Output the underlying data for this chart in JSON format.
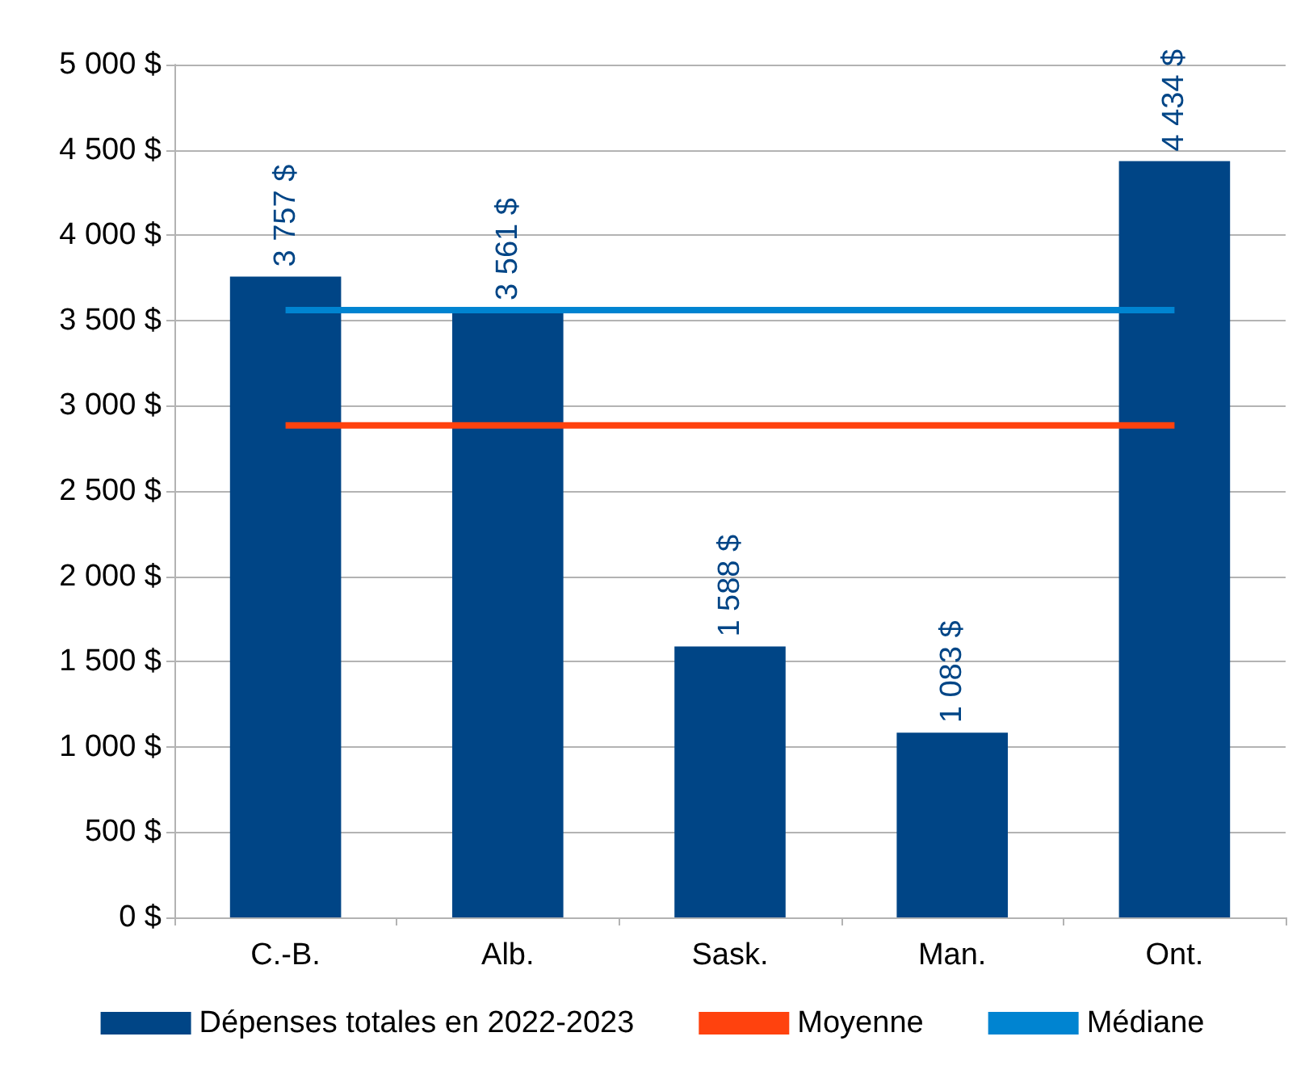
{
  "chart_data": {
    "type": "bar",
    "categories": [
      "C.-B.",
      "Alb.",
      "Sask.",
      "Man.",
      "Ont."
    ],
    "series": [
      {
        "name": "Dépenses totales en 2022-2023",
        "color": "#004586",
        "values": [
          3757,
          3561,
          1588,
          1083,
          4434
        ],
        "value_labels": [
          "3 757 $",
          "3 561 $",
          "1 588 $",
          "1 083 $",
          "4 434 $"
        ]
      },
      {
        "name": "Moyenne",
        "type": "line",
        "color": "#ff420e",
        "values": [
          2885,
          2885,
          2885,
          2885,
          2885
        ]
      },
      {
        "name": "Médiane",
        "type": "line",
        "color": "#0084d1",
        "values": [
          3561,
          3561,
          3561,
          3561,
          3561
        ]
      }
    ],
    "ylim": [
      0,
      5000
    ],
    "yticks": [
      {
        "value": 0,
        "label": "0 $"
      },
      {
        "value": 500,
        "label": "500 $"
      },
      {
        "value": 1000,
        "label": "1 000 $"
      },
      {
        "value": 1500,
        "label": "1 500 $"
      },
      {
        "value": 2000,
        "label": "2 000 $"
      },
      {
        "value": 2500,
        "label": "2 500 $"
      },
      {
        "value": 3000,
        "label": "3 000 $"
      },
      {
        "value": 3500,
        "label": "3 500 $"
      },
      {
        "value": 4000,
        "label": "4 000 $"
      },
      {
        "value": 4500,
        "label": "4 500 $"
      },
      {
        "value": 5000,
        "label": "5 000 $"
      }
    ],
    "grid": "y",
    "legend": "bottom",
    "marker": "none"
  }
}
